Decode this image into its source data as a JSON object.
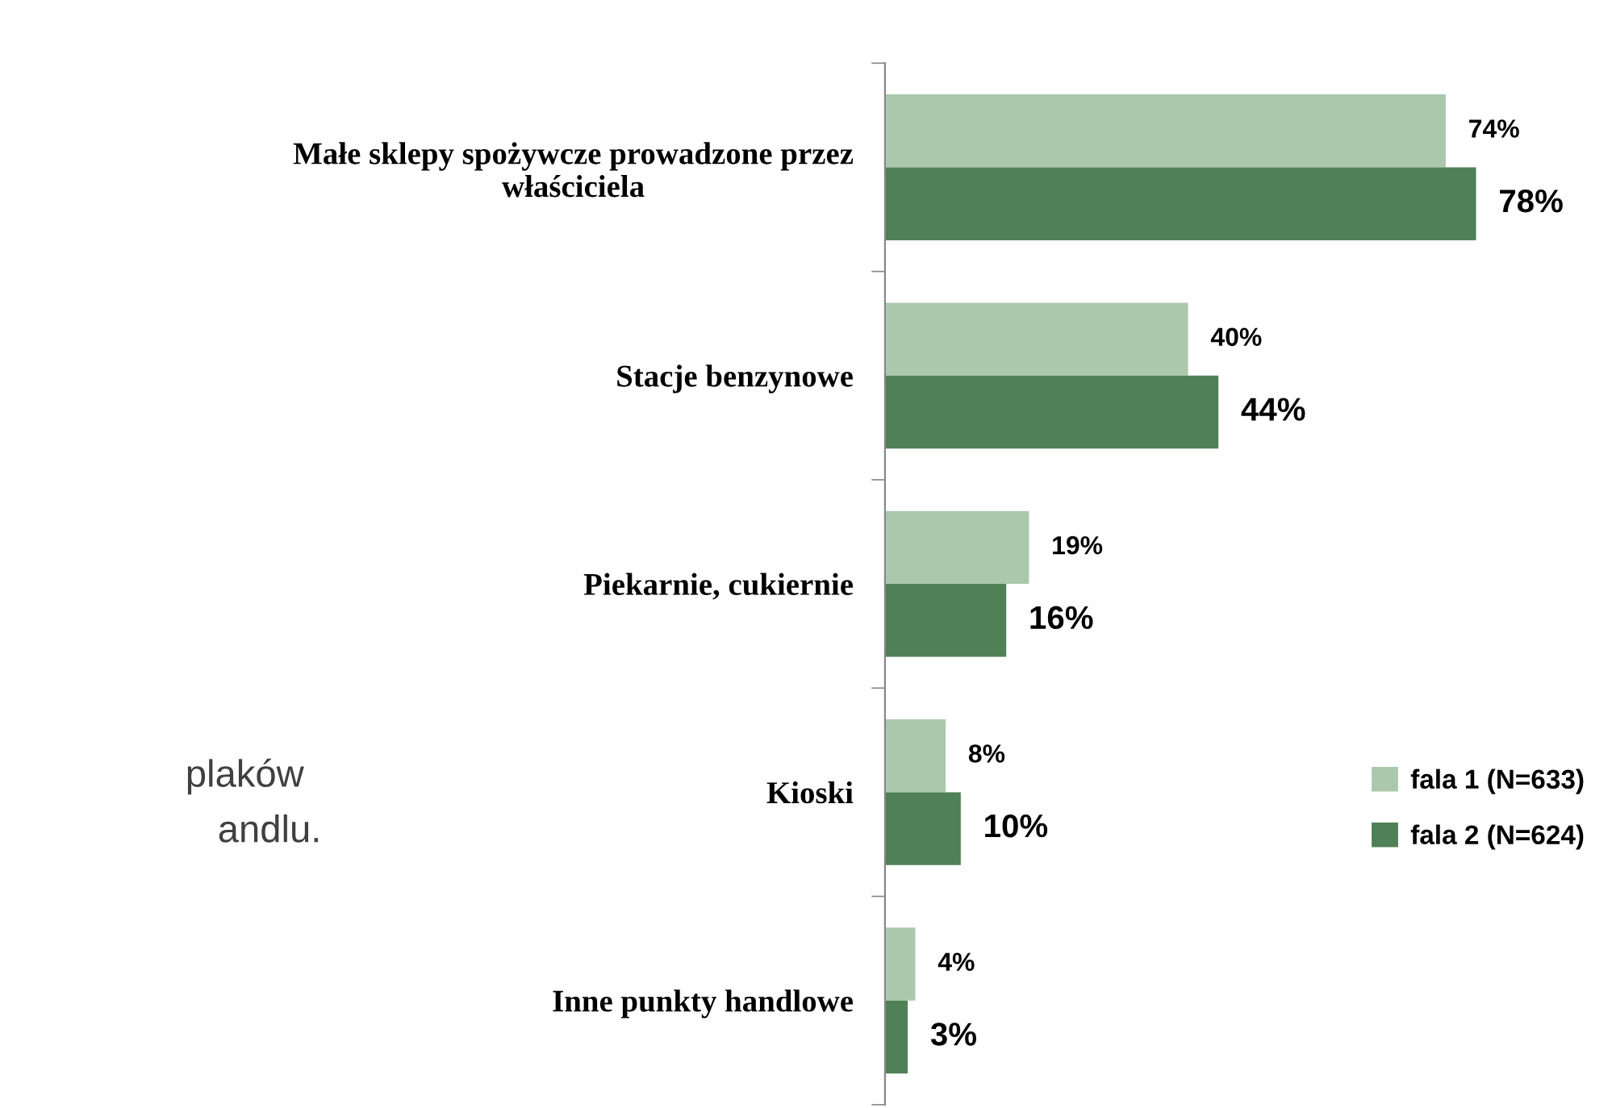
{
  "chart_data": {
    "type": "bar",
    "orientation": "horizontal",
    "categories": [
      "Małe sklepy spożywcze prowadzone przez\nwłaściciela",
      "Stacje benzynowe",
      "Piekarnie, cukiernie",
      "Kioski",
      "Inne punkty handlowe"
    ],
    "series": [
      {
        "name": "fala 1 (N=633)",
        "color": "#abc8ad",
        "values": [
          74,
          40,
          19,
          8,
          4
        ],
        "value_labels": [
          "74%",
          "40%",
          "19%",
          "8%",
          "4%"
        ]
      },
      {
        "name": "fala 2 (N=624)",
        "color": "#4f8056",
        "values": [
          78,
          44,
          16,
          10,
          3
        ],
        "value_labels": [
          "78%",
          "44%",
          "16%",
          "10%",
          "3%"
        ]
      }
    ],
    "legend": "right",
    "grid": false,
    "annotations": [
      "plaków",
      "andlu."
    ]
  }
}
